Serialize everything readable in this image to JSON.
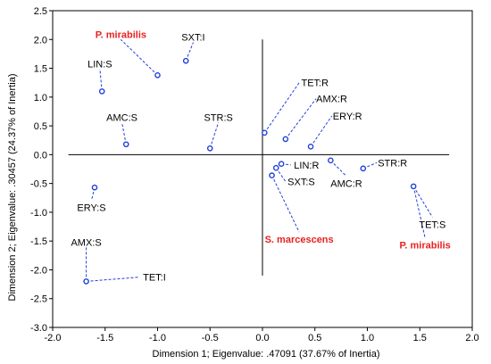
{
  "chart_data": {
    "type": "scatter",
    "title": "",
    "xlabel": "Dimension 1; Eigenvalue: .47091 (37.67% of Inertia)",
    "ylabel": "Dimension 2; Eigenvalue: .30457 (24.37% of Inertia)",
    "xlim": [
      -2.0,
      2.0
    ],
    "ylim": [
      -3.0,
      2.5
    ],
    "xticks": [
      "-2.0",
      "-1.5",
      "-1.0",
      "-0.5",
      "0.0",
      "0.5",
      "1.0",
      "1.5",
      "2.0"
    ],
    "yticks": [
      "2.5",
      "2.0",
      "1.5",
      "1.0",
      "0.5",
      "0.0",
      "-0.5",
      "-1.0",
      "-1.5",
      "-2.0",
      "-2.5",
      "-3.0"
    ],
    "grid": false,
    "colors": {
      "points": "#1f3fd8",
      "leader": "#1f3fd8",
      "highlight_label": "#e8211f",
      "reference_lines": "#000000"
    },
    "points": [
      {
        "label": "P. mirabilis",
        "x": -1.0,
        "y": 1.38,
        "label_x": -1.35,
        "label_y": 2.03,
        "highlight": true
      },
      {
        "label": "SXT:I",
        "x": -0.73,
        "y": 1.63,
        "label_x": -0.66,
        "label_y": 1.98,
        "highlight": false
      },
      {
        "label": "LIN:S",
        "x": -1.53,
        "y": 1.1,
        "label_x": -1.55,
        "label_y": 1.52,
        "highlight": false
      },
      {
        "label": "AMC:S",
        "x": -1.3,
        "y": 0.18,
        "label_x": -1.34,
        "label_y": 0.59,
        "highlight": false
      },
      {
        "label": "STR:S",
        "x": -0.5,
        "y": 0.11,
        "label_x": -0.42,
        "label_y": 0.59,
        "highlight": false
      },
      {
        "label": "TET:R",
        "x": 0.02,
        "y": 0.38,
        "label_x": 0.5,
        "label_y": 1.19,
        "highlight": false
      },
      {
        "label": "AMX:R",
        "x": 0.22,
        "y": 0.27,
        "label_x": 0.66,
        "label_y": 0.91,
        "highlight": false
      },
      {
        "label": "ERY:R",
        "x": 0.46,
        "y": 0.14,
        "label_x": 0.81,
        "label_y": 0.61,
        "highlight": false
      },
      {
        "label": "LIN:R",
        "x": 0.18,
        "y": -0.16,
        "label_x": 0.42,
        "label_y": -0.24,
        "highlight": false
      },
      {
        "label": "SXT:S",
        "x": 0.13,
        "y": -0.23,
        "label_x": 0.37,
        "label_y": -0.53,
        "highlight": false
      },
      {
        "label": "S. marcescens",
        "x": 0.09,
        "y": -0.36,
        "label_x": 0.35,
        "label_y": -1.53,
        "highlight": true
      },
      {
        "label": "AMC:R",
        "x": 0.65,
        "y": -0.1,
        "label_x": 0.8,
        "label_y": -0.56,
        "highlight": false
      },
      {
        "label": "STR:R",
        "x": 0.96,
        "y": -0.24,
        "label_x": 1.24,
        "label_y": -0.2,
        "highlight": false
      },
      {
        "label": "TET:S",
        "x": 1.44,
        "y": -0.55,
        "label_x": 1.62,
        "label_y": -1.27,
        "highlight": false
      },
      {
        "label": "P. mirabilis",
        "x": 1.44,
        "y": -0.55,
        "label_x": 1.55,
        "label_y": -1.63,
        "highlight": true
      },
      {
        "label": "ERY:S",
        "x": -1.6,
        "y": -0.57,
        "label_x": -1.63,
        "label_y": -0.98,
        "highlight": false
      },
      {
        "label": "AMX:S",
        "x": -1.68,
        "y": -2.2,
        "label_x": -1.68,
        "label_y": -1.58,
        "highlight": false
      },
      {
        "label": "TET:I",
        "x": -1.68,
        "y": -2.2,
        "label_x": -1.03,
        "label_y": -2.19,
        "highlight": false
      }
    ]
  }
}
